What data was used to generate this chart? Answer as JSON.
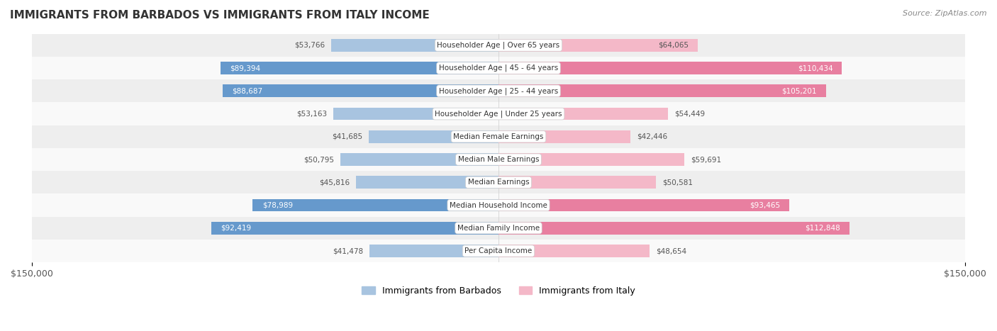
{
  "title": "IMMIGRANTS FROM BARBADOS VS IMMIGRANTS FROM ITALY INCOME",
  "source": "Source: ZipAtlas.com",
  "categories": [
    "Per Capita Income",
    "Median Family Income",
    "Median Household Income",
    "Median Earnings",
    "Median Male Earnings",
    "Median Female Earnings",
    "Householder Age | Under 25 years",
    "Householder Age | 25 - 44 years",
    "Householder Age | 45 - 64 years",
    "Householder Age | Over 65 years"
  ],
  "barbados_values": [
    41478,
    92419,
    78989,
    45816,
    50795,
    41685,
    53163,
    88687,
    89394,
    53766
  ],
  "italy_values": [
    48654,
    112848,
    93465,
    50581,
    59691,
    42446,
    54449,
    105201,
    110434,
    64065
  ],
  "max_val": 150000,
  "barbados_color_light": "#a8c4e0",
  "barbados_color_dark": "#6699cc",
  "italy_color_light": "#f4b8c8",
  "italy_color_dark": "#e87fa0",
  "label_color_dark": "#ffffff",
  "label_color_light": "#555555",
  "bar_height": 0.55,
  "background_color": "#f5f5f5",
  "row_bg_light": "#f9f9f9",
  "row_bg_dark": "#eeeeee",
  "legend_barbados": "Immigrants from Barbados",
  "legend_italy": "Immigrants from Italy",
  "threshold_white_label": 20000
}
